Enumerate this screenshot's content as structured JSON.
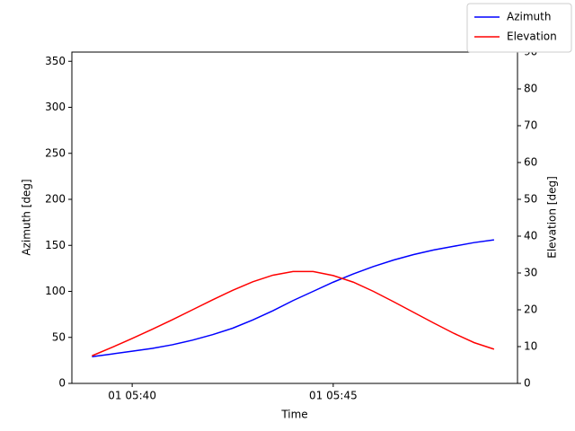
{
  "chart_data": {
    "type": "line",
    "x_label": "Time",
    "y_label": "Azimuth [deg]",
    "y2_label": "Elevation [deg]",
    "x": [
      "01 05:39:00",
      "01 05:39:30",
      "01 05:40:00",
      "01 05:40:30",
      "01 05:41:00",
      "01 05:41:30",
      "01 05:42:00",
      "01 05:42:30",
      "01 05:43:00",
      "01 05:43:30",
      "01 05:44:00",
      "01 05:44:30",
      "01 05:45:00",
      "01 05:45:30",
      "01 05:46:00",
      "01 05:46:30",
      "01 05:47:00",
      "01 05:47:30",
      "01 05:48:00",
      "01 05:48:30",
      "01 05:49:00"
    ],
    "series": [
      {
        "name": "Azimuth",
        "color": "#0000ff",
        "axis": "y",
        "values": [
          29,
          32,
          35,
          38,
          42,
          47,
          53,
          60,
          69,
          79,
          90,
          100,
          110,
          119,
          127,
          134,
          140,
          145,
          149,
          153,
          156
        ]
      },
      {
        "name": "Elevation",
        "color": "#ff0000",
        "axis": "y2",
        "values": [
          7.5,
          9.8,
          12.2,
          14.7,
          17.3,
          20,
          22.7,
          25.3,
          27.6,
          29.4,
          30.4,
          30.4,
          29.3,
          27.5,
          25,
          22.2,
          19.3,
          16.4,
          13.6,
          11.1,
          9.3
        ]
      }
    ],
    "xlim": [
      "01 05:38:30",
      "01 05:49:35"
    ],
    "xticks": [
      {
        "value": "01 05:40:00",
        "label": "01 05:40"
      },
      {
        "value": "01 05:45:00",
        "label": "01 05:45"
      }
    ],
    "ylim": [
      0,
      360
    ],
    "yticks": [
      0,
      50,
      100,
      150,
      200,
      250,
      300,
      350
    ],
    "y2lim": [
      0,
      90
    ],
    "y2ticks": [
      0,
      10,
      20,
      30,
      40,
      50,
      60,
      70,
      80,
      90
    ],
    "legend": "upper right",
    "grid": false
  }
}
